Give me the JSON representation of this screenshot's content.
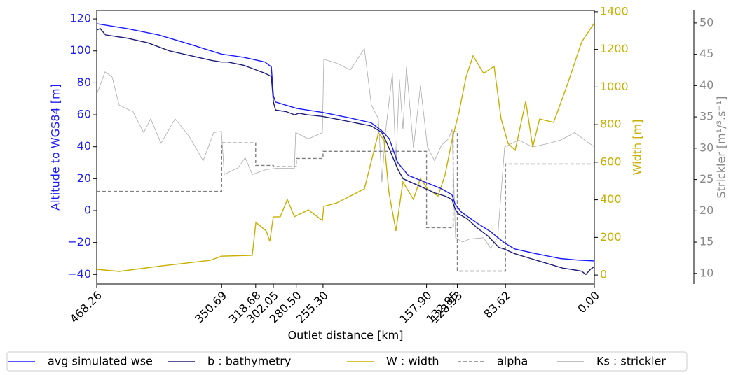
{
  "chart_data": {
    "type": "line",
    "xlabel": "Outlet distance [km]",
    "ylabel": "Altitude to WGS84 [m]",
    "y2label": "Width [m]",
    "y3label": "Strickler [m¹/³.s⁻¹]",
    "ycolor": "#1a1aff",
    "y2color": "#c8b000",
    "y3color": "#888888",
    "xlim": [
      468.26,
      0
    ],
    "xticks": [
      468.26,
      350.69,
      318.68,
      302.05,
      {
        "value": 280.5,
        "label": "280.50"
      },
      {
        "value": 255.3,
        "label": "255.30"
      },
      {
        "value": 157.9,
        "label": "157.90"
      },
      132.85,
      128.93,
      83.62,
      {
        "value": 0,
        "label": "0.00"
      }
    ],
    "ylim": [
      -46,
      125.3
    ],
    "yticks": [
      {
        "value": -40,
        "label": "−40"
      },
      {
        "value": -20,
        "label": "−20"
      },
      0,
      20,
      40,
      60,
      80,
      100,
      120
    ],
    "y2lim": [
      -48,
      1407
    ],
    "y2ticks": [
      0,
      200,
      400,
      600,
      800,
      1000,
      1200,
      1400
    ],
    "y3lim": [
      8.3,
      52
    ],
    "y3ticks": [
      10,
      15,
      20,
      25,
      30,
      35,
      40,
      45,
      50
    ],
    "legend": "bottom",
    "series": [
      {
        "name": "avg simulated wse",
        "color": "#1a1aff",
        "axis": "y",
        "x": [
          468.26,
          440,
          410,
          380,
          351,
          330,
          310,
          304,
          302,
          300,
          290,
          280,
          256,
          230,
          210,
          200,
          193,
          185,
          175,
          160,
          145,
          134,
          131,
          125,
          110,
          98,
          85,
          75,
          55,
          32,
          15,
          0
        ],
        "values": [
          117,
          114,
          110,
          104,
          98,
          96,
          93,
          90,
          72,
          68,
          66,
          64,
          61.5,
          58,
          55,
          50,
          45,
          30,
          22,
          18,
          14,
          10,
          4,
          -1,
          -8,
          -13,
          -20,
          -24,
          -27,
          -30,
          -31,
          -31.5
        ]
      },
      {
        "name": "b : bathymetry",
        "color": "#1c1c78",
        "axis": "y",
        "x": [
          468.26,
          465,
          460,
          440,
          420,
          400,
          380,
          360,
          351,
          345,
          330,
          318,
          310,
          304,
          302,
          300,
          290,
          282,
          278,
          270,
          256,
          240,
          225,
          210,
          200,
          195,
          190,
          185,
          180,
          170,
          160,
          150,
          140,
          134,
          131,
          128,
          120,
          110,
          100,
          90,
          85,
          75,
          60,
          45,
          30,
          20,
          12,
          8,
          4,
          0
        ],
        "values": [
          113,
          114,
          110,
          108,
          105,
          100,
          97,
          94,
          93,
          93,
          91,
          88,
          86,
          84,
          68,
          63,
          62,
          60,
          61,
          60,
          59,
          57,
          55,
          53,
          49,
          42,
          34,
          26,
          20,
          17,
          14,
          11,
          9,
          7,
          1,
          -2,
          -5,
          -11,
          -16,
          -23,
          -24,
          -27,
          -30,
          -33,
          -36,
          -37,
          -38,
          -40,
          -37,
          -35
        ]
      },
      {
        "name": "W : width",
        "color": "#c8b000",
        "axis": "y2",
        "x": [
          468.26,
          447.2,
          407.7,
          361.5,
          350.9,
          321.9,
          318.5,
          308.7,
          305.4,
          302.1,
          295.5,
          288.9,
          282.3,
          269.1,
          255.9,
          254.6,
          242.7,
          229.6,
          216.4,
          203.2,
          197.9,
          193.3,
          186.7,
          180.1,
          170.2,
          163.6,
          157,
          147.1,
          140.5,
          133.9,
          127.3,
          120.7,
          114.1,
          104.2,
          94.3,
          87.7,
          81.1,
          74.5,
          64.6,
          58,
          51.5,
          38.3,
          25.1,
          11.9,
          0
        ],
        "values": [
          30,
          19,
          48,
          78,
          100,
          105,
          280,
          234,
          179,
          309,
          310,
          402,
          310,
          346,
          290,
          365,
          383,
          420,
          458,
          756,
          719,
          440,
          235,
          495,
          402,
          514,
          458,
          420,
          532,
          719,
          868,
          1054,
          1166,
          1073,
          1110,
          830,
          700,
          663,
          924,
          681,
          830,
          812,
          1017,
          1240,
          1341
        ]
      },
      {
        "name": "alpha",
        "color": "#808080",
        "axis": "y",
        "dash": true,
        "x": [
          468.26,
          350.69,
          350.69,
          318.68,
          318.68,
          302.05,
          302.05,
          280.5,
          280.5,
          255.3,
          255.3,
          157.9,
          157.9,
          132.85,
          132.85,
          128.93,
          128.93,
          83.62,
          83.62,
          0
        ],
        "values": [
          12,
          12,
          42.4,
          42.4,
          28.3,
          28.3,
          27.5,
          27.5,
          32.7,
          32.7,
          37.1,
          37.1,
          -10.7,
          -10.7,
          49.4,
          49.4,
          -37.9,
          -37.9,
          29.2,
          29.2
        ]
      },
      {
        "name": "Ks : strickler",
        "color": "#aaaaaa",
        "axis": "y3",
        "x": [
          468.26,
          460.4,
          453.8,
          447.2,
          434,
          424.1,
          417.5,
          407.7,
          394.5,
          381.3,
          368.1,
          358.2,
          350.9,
          348.2,
          335.1,
          328.5,
          321.9,
          308.7,
          298.8,
          282.3,
          281,
          269.1,
          255.9,
          254.6,
          242.7,
          229.6,
          216.4,
          209.8,
          203.2,
          199.9,
          196.6,
          190,
          186.7,
          183.4,
          180.1,
          176.8,
          170.2,
          163.6,
          157,
          150.4,
          143.8,
          137.2,
          133.9,
          130.6,
          124,
          117.4,
          104.2,
          97.6,
          91,
          84.4,
          71.2,
          58,
          44.9,
          31.7,
          18.5,
          0
        ],
        "values": [
          38.6,
          42.2,
          41.4,
          36.9,
          35.8,
          32.5,
          34.7,
          30.8,
          34.7,
          31.9,
          28,
          32.5,
          32.7,
          25.8,
          26.9,
          28.5,
          25.8,
          26.6,
          26.8,
          26.8,
          32.5,
          31.5,
          32.5,
          44.2,
          43.6,
          42.5,
          45.9,
          36.9,
          34.7,
          24.6,
          32.5,
          42,
          27.5,
          41,
          33,
          43,
          30,
          40,
          30.2,
          28,
          30.5,
          31.5,
          33,
          15.7,
          15,
          15.5,
          15.7,
          14,
          15.7,
          30.2,
          31.3,
          30.2,
          30.7,
          31.3,
          32.5,
          30.2
        ]
      }
    ]
  }
}
